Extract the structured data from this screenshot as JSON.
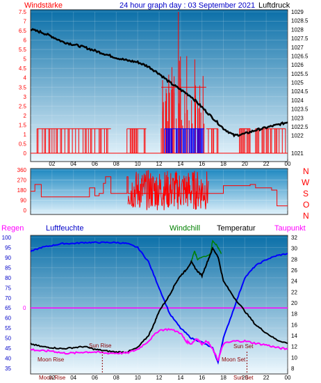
{
  "header": {
    "left_label": "Windstärke",
    "title": "24 hour graph day : 03 September 2021",
    "right_label": "Luftdruck"
  },
  "mid": {
    "dir_labels": [
      "N",
      "W",
      "S",
      "O",
      "N"
    ]
  },
  "bottom_header": {
    "regen": "Regen",
    "luftfeuchte": "Luftfeuchte",
    "windchill": "Windchill",
    "temperatur": "Temperatur",
    "taupunkt": "Taupunkt"
  },
  "colors": {
    "panel_top": "#0a6fa8",
    "panel_bottom": "#eaf6fd",
    "red": "#ff0000",
    "blue": "#0000ff",
    "black": "#000000",
    "green": "#008000",
    "magenta": "#ff00ff",
    "darkred": "#8b0000"
  },
  "chart_data": [
    {
      "type": "line",
      "name": "wind-pressure",
      "x_ticks": [
        "02",
        "04",
        "06",
        "08",
        "10",
        "12",
        "14",
        "16",
        "18",
        "20",
        "22",
        "00"
      ],
      "y_left_ticks": [
        "7.5",
        "7",
        "6.5",
        "6",
        "5.5",
        "5",
        "4.5",
        "4",
        "3.5",
        "3",
        "2.5",
        "2",
        "1.5",
        "1",
        "0.5",
        "0"
      ],
      "y_right_ticks": [
        "1029",
        "1028.5",
        "1028",
        "1027.5",
        "1027",
        "1026.5",
        "1026",
        "1025.5",
        "1025",
        "1024.5",
        "1024",
        "1023.5",
        "1023",
        "1022.5",
        "1022",
        "1021"
      ],
      "ylim_left": [
        0,
        7.5
      ],
      "ylim_right": [
        1021,
        1029
      ],
      "pressure": {
        "x": [
          0,
          1,
          2,
          3,
          4,
          5,
          6,
          7,
          8,
          9,
          10,
          11,
          12,
          13,
          14,
          15,
          16,
          17,
          18,
          19,
          20,
          21,
          22,
          23,
          24
        ],
        "y": [
          1028.0,
          1027.85,
          1027.6,
          1027.3,
          1027.15,
          1027.0,
          1026.8,
          1026.6,
          1026.4,
          1026.25,
          1026.15,
          1025.9,
          1025.5,
          1025.0,
          1024.6,
          1024.2,
          1023.6,
          1023.0,
          1022.4,
          1022.0,
          1022.1,
          1022.3,
          1022.45,
          1022.6,
          1022.75
        ]
      },
      "wind_red_segments": [
        [
          0.6,
          7.5,
          1.3
        ],
        [
          9.0,
          10.8,
          1.3
        ],
        [
          12.2,
          16.4,
          3.5
        ],
        [
          16.4,
          17.5,
          1.3
        ],
        [
          19.5,
          20.5,
          1.3
        ],
        [
          21.0,
          23.8,
          1.3
        ]
      ],
      "wind_blue_segment": [
        12.5,
        16.2,
        1.3
      ],
      "wind_spike_x": 13.8,
      "wind_spike_y": 7.5
    },
    {
      "type": "line",
      "name": "wind-direction",
      "y_ticks": [
        "360",
        "270",
        "180",
        "90",
        "0"
      ],
      "ylim": [
        0,
        360
      ],
      "x": [
        0,
        0.4,
        1,
        3,
        5,
        5.5,
        6,
        6.4,
        6.8,
        7.0,
        7.5,
        8.5,
        9.0,
        9.1,
        12.0,
        16.5,
        17.5,
        18.0,
        20.0,
        20.5,
        21.0,
        22.5,
        23.0,
        24.0
      ],
      "y": [
        170,
        230,
        120,
        120,
        120,
        200,
        130,
        150,
        240,
        300,
        150,
        150,
        300,
        150,
        150,
        150,
        150,
        220,
        220,
        230,
        200,
        180,
        40,
        40
      ]
    },
    {
      "type": "line",
      "name": "humidity-temperature",
      "x_ticks": [
        "02",
        "04",
        "06",
        "08",
        "10",
        "12",
        "14",
        "16",
        "18",
        "20",
        "22",
        "00"
      ],
      "y_left_ticks": [
        "100",
        "95",
        "90",
        "85",
        "80",
        "75",
        "70",
        "65",
        "60",
        "55",
        "50",
        "45",
        "40",
        "35"
      ],
      "y_right_ticks": [
        "32",
        "30",
        "28",
        "26",
        "24",
        "22",
        "20",
        "18",
        "16",
        "14",
        "12",
        "10",
        "8"
      ],
      "ylim_left": [
        35,
        100
      ],
      "ylim_right": [
        8,
        32
      ],
      "zero_label": "0",
      "sun_rise_label": "Sun Rise",
      "sun_set_label": "Sun Set",
      "moon_rise_label": "Moon Rise",
      "moon_set_label": "Moon Set",
      "humidity": {
        "x": [
          0,
          1,
          2,
          3,
          4,
          5,
          6,
          7,
          8,
          9,
          10,
          11,
          12,
          13,
          14,
          15,
          16,
          17,
          17.5,
          18,
          19,
          20,
          21,
          22,
          23,
          24
        ],
        "y": [
          93,
          95,
          96,
          97,
          97,
          97.5,
          97.5,
          97.5,
          97.5,
          97,
          95,
          88,
          75,
          62,
          55,
          50,
          48,
          45,
          38,
          50,
          65,
          80,
          86,
          89,
          91,
          92
        ]
      },
      "temperature": {
        "x": [
          0,
          1,
          2,
          3,
          4,
          5,
          6,
          7,
          8,
          9,
          10,
          11,
          11.5,
          12,
          13,
          13.5,
          14,
          14.5,
          15,
          15.5,
          16,
          16.5,
          17,
          17.5,
          18,
          19,
          20,
          21,
          22,
          23,
          24
        ],
        "y": [
          12.5,
          12,
          11.8,
          11.6,
          11.8,
          12,
          11.5,
          11.2,
          11,
          11,
          11.8,
          14,
          16,
          18.5,
          21.5,
          23.5,
          25,
          26,
          27.5,
          26,
          25,
          27.5,
          30,
          28.5,
          24,
          21,
          18.5,
          16,
          14.5,
          13.2,
          12.6
        ]
      },
      "windchill": {
        "x": [
          15.0,
          15.3,
          15.6,
          16.8,
          17.0,
          17.4,
          17.8
        ],
        "y": [
          27.5,
          29.5,
          28.0,
          29.0,
          31.5,
          30.5,
          29.0
        ]
      },
      "dewpoint": {
        "x": [
          0,
          1,
          2,
          3,
          4,
          5,
          6,
          7,
          8,
          9,
          10,
          11,
          12,
          13,
          14,
          14.5,
          15,
          15.5,
          16,
          16.5,
          17,
          17.5,
          18,
          19,
          20,
          21,
          22,
          23,
          24
        ],
        "y": [
          11.5,
          11.2,
          11.2,
          10.8,
          10.8,
          11.0,
          11.0,
          10.8,
          10.8,
          10.8,
          11.5,
          13.0,
          15.0,
          15.2,
          14.5,
          13.0,
          12.5,
          13.5,
          12.5,
          13.0,
          11.5,
          9.5,
          12.5,
          13.0,
          13.0,
          12.6,
          12.3,
          11.8,
          11.5
        ]
      }
    }
  ]
}
